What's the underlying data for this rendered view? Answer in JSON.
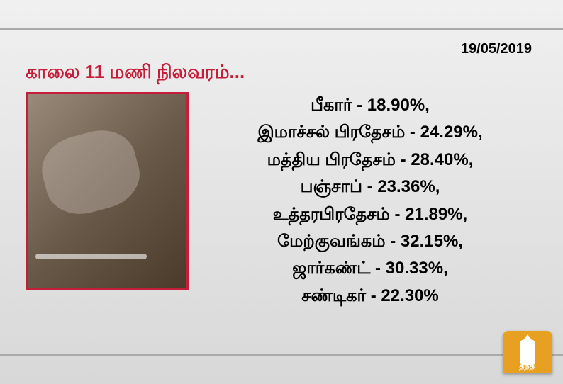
{
  "date": "19/05/2019",
  "title": "காலை 11 மணி நிலவரம்...",
  "states": [
    {
      "name": "பீகார்",
      "value": "18.90%"
    },
    {
      "name": "இமாச்சல் பிரதேசம்",
      "value": "24.29%"
    },
    {
      "name": "மத்திய பிரதேசம்",
      "value": "28.40%"
    },
    {
      "name": "பஞ்சாப்",
      "value": "23.36%"
    },
    {
      "name": "உத்தரபிரதேசம்",
      "value": "21.89%"
    },
    {
      "name": "மேற்குவங்கம்",
      "value": "32.15%"
    },
    {
      "name": "ஜார்கண்ட்",
      "value": "30.33%"
    },
    {
      "name": "சண்டிகர்",
      "value": "22.30%"
    }
  ],
  "logo_text": "தந்தி",
  "colors": {
    "title_color": "#c41e3a",
    "frame_border": "#c41e3a",
    "text_color": "#000000",
    "logo_bg": "#e8a020",
    "background_top": "#f0f0f0",
    "background_bottom": "#d8d8d8"
  },
  "typography": {
    "title_fontsize": 26,
    "data_fontsize": 24,
    "date_fontsize": 20
  }
}
